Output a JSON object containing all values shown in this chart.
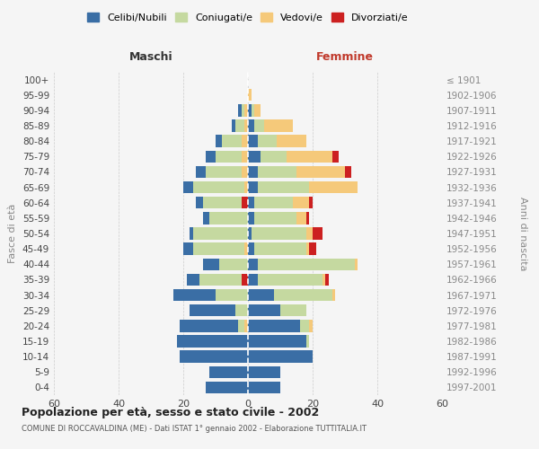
{
  "age_groups": [
    "0-4",
    "5-9",
    "10-14",
    "15-19",
    "20-24",
    "25-29",
    "30-34",
    "35-39",
    "40-44",
    "45-49",
    "50-54",
    "55-59",
    "60-64",
    "65-69",
    "70-74",
    "75-79",
    "80-84",
    "85-89",
    "90-94",
    "95-99",
    "100+"
  ],
  "birth_years": [
    "1997-2001",
    "1992-1996",
    "1987-1991",
    "1982-1986",
    "1977-1981",
    "1972-1976",
    "1967-1971",
    "1962-1966",
    "1957-1961",
    "1952-1956",
    "1947-1951",
    "1942-1946",
    "1937-1941",
    "1932-1936",
    "1927-1931",
    "1922-1926",
    "1917-1921",
    "1912-1916",
    "1907-1911",
    "1902-1906",
    "≤ 1901"
  ],
  "maschi_celibi": [
    13,
    12,
    21,
    22,
    18,
    14,
    13,
    4,
    5,
    3,
    1,
    2,
    2,
    3,
    3,
    3,
    2,
    1,
    1,
    0,
    0
  ],
  "maschi_coniugati": [
    0,
    0,
    0,
    0,
    2,
    4,
    10,
    13,
    9,
    16,
    17,
    12,
    12,
    16,
    11,
    8,
    6,
    3,
    1,
    0,
    0
  ],
  "maschi_vedovi": [
    0,
    0,
    0,
    0,
    1,
    0,
    0,
    0,
    0,
    1,
    0,
    0,
    0,
    1,
    2,
    2,
    2,
    1,
    1,
    0,
    0
  ],
  "maschi_divorziati": [
    0,
    0,
    0,
    0,
    0,
    0,
    0,
    2,
    0,
    0,
    0,
    0,
    2,
    0,
    0,
    0,
    0,
    0,
    0,
    0,
    0
  ],
  "femmine_celibi": [
    10,
    10,
    20,
    18,
    16,
    10,
    8,
    3,
    3,
    2,
    1,
    2,
    2,
    3,
    3,
    4,
    3,
    2,
    1,
    0,
    0
  ],
  "femmine_coniugati": [
    0,
    0,
    0,
    1,
    3,
    8,
    18,
    20,
    30,
    16,
    17,
    13,
    12,
    16,
    12,
    8,
    6,
    3,
    1,
    0,
    0
  ],
  "femmine_vedovi": [
    0,
    0,
    0,
    0,
    1,
    0,
    1,
    1,
    1,
    1,
    2,
    3,
    5,
    15,
    15,
    14,
    9,
    9,
    2,
    1,
    0
  ],
  "femmine_divorziati": [
    0,
    0,
    0,
    0,
    0,
    0,
    0,
    1,
    0,
    2,
    3,
    1,
    1,
    0,
    2,
    2,
    0,
    0,
    0,
    0,
    0
  ],
  "colors": {
    "celibi": "#3a6ea5",
    "coniugati": "#c5d9a0",
    "vedovi": "#f5c97a",
    "divorziati": "#cc2020"
  },
  "title": "Popolazione per età, sesso e stato civile - 2002",
  "subtitle": "COMUNE DI ROCCAVALDINA (ME) - Dati ISTAT 1° gennaio 2002 - Elaborazione TUTTITALIA.IT",
  "ylabel": "Fasce di età",
  "right_label": "Anni di nascita",
  "maschi_label": "Maschi",
  "femmine_label": "Femmine",
  "xlim": 60,
  "bg_color": "#f5f5f5",
  "grid_color": "#cccccc"
}
